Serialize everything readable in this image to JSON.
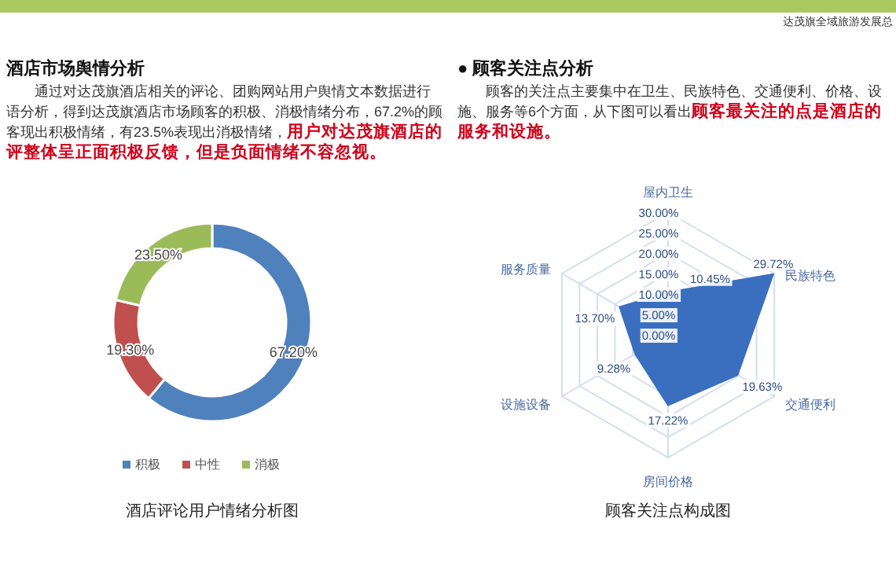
{
  "chart_data": [
    {
      "type": "donut",
      "title": "酒店市场舆情分析",
      "subtitle": "通过对达茂旗酒店相关的评论、团购网站用户舆情文本数据进行语分析，得到达茂旗酒店市场顾客的积极、消极情绪分布，67.2%的顾客现出积极情绪，有23.5%表现出消极情绪，",
      "annotations": [
        "用户对达茂旗酒店的评整体呈正面积极反馈，但是负面情绪不容忽视。",
        "酒店评论用户情绪分析图",
        "达茂旗全域旅游发展总"
      ],
      "categories": [
        "积极",
        "中性",
        "消极"
      ],
      "values": [
        67.2,
        19.3,
        23.5
      ],
      "colors": [
        "#4f81bd",
        "#c0504d",
        "#9bbb59"
      ],
      "value_labels": [
        "67.20%",
        "19.30%",
        "23.50%"
      ],
      "legend": "bottom"
    },
    {
      "type": "radar",
      "title": "● 顾客关注点分析",
      "subtitle": "顾客的关注点主要集中在卫生、民族特色、交通便利、价格、设施、服务等6个方面，从下图可以看出",
      "annotations": [
        "顾客最关注的点是酒店的服务和设施。",
        "顾客关注点构成图"
      ],
      "categories": [
        "屋内卫生",
        "民族特色",
        "交通便利",
        "房间价格",
        "设施设备",
        "服务质量"
      ],
      "series": [
        {
          "color": "#3a6fbf",
          "values": [
            10.45,
            29.72,
            19.63,
            17.22,
            9.28,
            13.7
          ],
          "value_labels": [
            "10.45%",
            "29.72%",
            "19.63%",
            "17.22%",
            "9.28%",
            "13.70%"
          ]
        }
      ],
      "ylim": [
        0,
        30
      ],
      "yticks": [
        {
          "value": 0,
          "label": "0.00%"
        },
        {
          "value": 5,
          "label": "5.00%"
        },
        {
          "value": 10,
          "label": "10.00%"
        },
        {
          "value": 15,
          "label": "15.00%"
        },
        {
          "value": 20,
          "label": "20.00%"
        },
        {
          "value": 25,
          "label": "25.00%"
        },
        {
          "value": 30,
          "label": "30.00%"
        }
      ],
      "grid": true
    }
  ]
}
